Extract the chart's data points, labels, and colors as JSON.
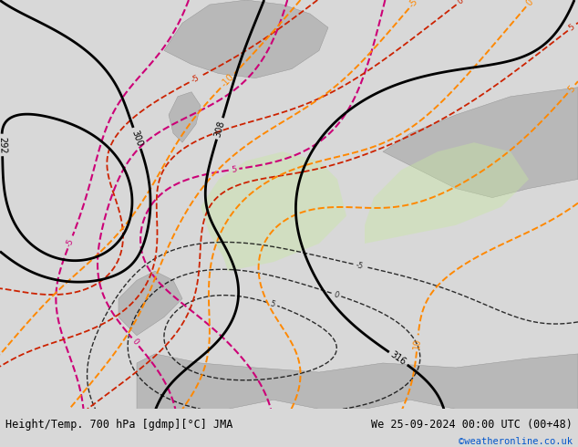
{
  "title_left": "Height/Temp. 700 hPa [gdmp][°C] JMA",
  "title_right": "We 25-09-2024 00:00 UTC (00+48)",
  "credit": "©weatheronline.co.uk",
  "bg_map_color": "#c8dda0",
  "land_green_color": "#b8d898",
  "gray_terrain_color": "#b8b8b8",
  "sea_color": "#d0d8d0",
  "footer_bg": "#d8d8d8",
  "footer_text_color": "#000000",
  "credit_color": "#0055cc",
  "font_size_title": 8.5,
  "font_size_credit": 7.5
}
